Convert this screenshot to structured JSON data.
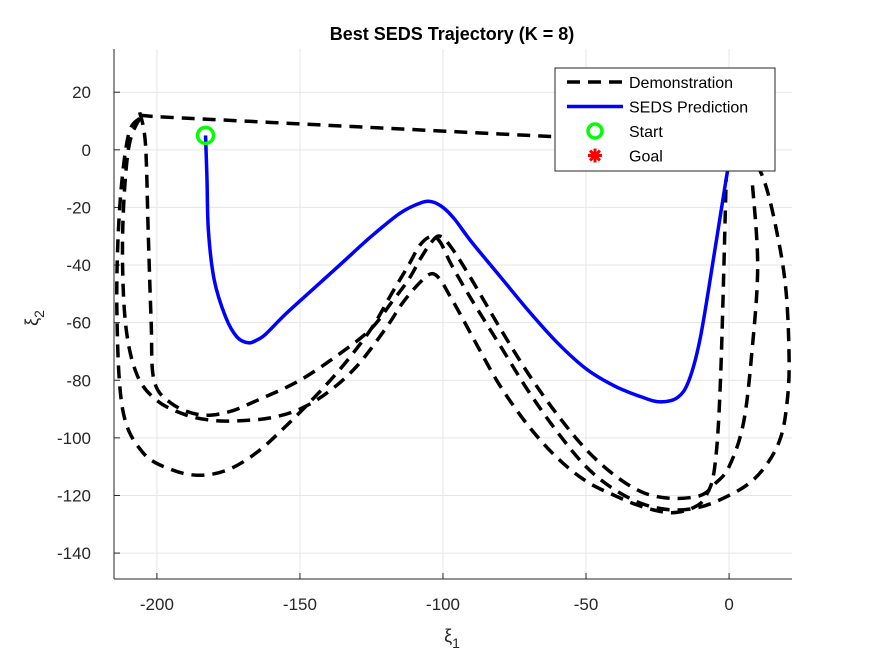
{
  "chart_data": {
    "type": "line",
    "title": "Best SEDS Trajectory (K = 8)",
    "xlabel": "ξ",
    "xlabel_sub": "1",
    "ylabel": "ξ",
    "ylabel_sub": "2",
    "xlim": [
      -215,
      22
    ],
    "ylim": [
      -149,
      35
    ],
    "xticks": [
      -200,
      -150,
      -100,
      -50,
      0
    ],
    "yticks": [
      -140,
      -120,
      -100,
      -80,
      -60,
      -40,
      -20,
      0,
      20
    ],
    "grid": true,
    "legend_position": "top-right",
    "legend": [
      {
        "label": "Demonstration",
        "style": "dashed",
        "color": "#000000"
      },
      {
        "label": "SEDS Prediction",
        "style": "solid",
        "color": "#0000ff"
      },
      {
        "label": "Start",
        "style": "circle",
        "color": "#00ff00"
      },
      {
        "label": "Goal",
        "style": "asterisk",
        "color": "#ff0000"
      }
    ],
    "series": [
      {
        "name": "Demonstration",
        "color": "#000000",
        "x": [
          -206,
          -210,
          -213,
          -214,
          -212,
          -205,
          -195,
          -185,
          -175,
          -165,
          -155,
          -145,
          -135,
          -125,
          -118,
          -112,
          -108,
          -104,
          -101,
          -97,
          -90,
          -80,
          -70,
          -60,
          -50,
          -40,
          -30,
          -20,
          -10,
          0,
          8,
          14,
          18,
          20,
          21,
          20,
          17,
          12,
          5,
          0
        ],
        "y": [
          11,
          5,
          -20,
          -55,
          -90,
          -105,
          -111,
          -113,
          -111,
          -105,
          -96,
          -86,
          -75,
          -62,
          -50,
          -40,
          -33,
          -30,
          -32,
          -40,
          -52,
          -68,
          -84,
          -98,
          -110,
          -118,
          -123,
          -125,
          -124,
          -120,
          -115,
          -108,
          -100,
          -90,
          -75,
          -50,
          -30,
          -10,
          2,
          5
        ]
      },
      {
        "name": "Demonstration",
        "color": "#000000",
        "x": [
          -206,
          -204,
          -203,
          -202,
          -201,
          -195,
          -185,
          -175,
          -165,
          -150,
          -135,
          -125,
          -118,
          -112,
          -108,
          -104,
          -101,
          -97,
          -90,
          -80,
          -70,
          -60,
          -50,
          -40,
          -30,
          -20,
          -10,
          -5,
          0,
          5,
          8,
          10,
          8
        ],
        "y": [
          13,
          2,
          -30,
          -60,
          -80,
          -88,
          -92,
          -91,
          -87,
          -80,
          -70,
          -62,
          -53,
          -45,
          -38,
          -32,
          -30,
          -34,
          -45,
          -62,
          -78,
          -92,
          -104,
          -113,
          -119,
          -121,
          -120,
          -116,
          -110,
          -95,
          -70,
          -40,
          -10
        ]
      },
      {
        "name": "Demonstration",
        "color": "#000000",
        "x": [
          -206,
          -210,
          -212,
          -211,
          -207,
          -200,
          -190,
          -180,
          -170,
          -160,
          -150,
          -140,
          -130,
          -120,
          -114,
          -108,
          -104,
          -101,
          -98,
          -94,
          -88,
          -80,
          -70,
          -60,
          -50,
          -40,
          -30,
          -20,
          -12,
          -8,
          -5,
          -3,
          -1
        ],
        "y": [
          11,
          0,
          -30,
          -60,
          -78,
          -87,
          -92,
          -94,
          -94,
          -93,
          -90,
          -84,
          -75,
          -62,
          -53,
          -46,
          -43,
          -45,
          -50,
          -57,
          -68,
          -82,
          -96,
          -107,
          -115,
          -120,
          -124,
          -126,
          -124,
          -120,
          -110,
          -80,
          -10
        ]
      },
      {
        "name": "Demonstration",
        "color": "#000000",
        "x": [
          -206,
          -200,
          -190,
          -180,
          -170,
          -160,
          -150,
          -140,
          -130,
          -120,
          -110,
          -100,
          -90,
          -80,
          -70,
          -60,
          -50,
          -40,
          -30,
          -20,
          -10,
          0,
          5,
          8
        ],
        "y": [
          12,
          11.5,
          11,
          10.5,
          10,
          9.5,
          9,
          8.5,
          8,
          7.5,
          7,
          6.5,
          6,
          5.5,
          5,
          4.5,
          4,
          3.5,
          3,
          2.5,
          2,
          1.5,
          1,
          0
        ]
      },
      {
        "name": "SEDS Prediction",
        "color": "#0000ff",
        "x": [
          -183,
          -182.5,
          -182,
          -180,
          -176,
          -172,
          -168,
          -165,
          -162,
          -155,
          -145,
          -135,
          -125,
          -115,
          -108,
          -104,
          -100,
          -96,
          -90,
          -80,
          -70,
          -60,
          -50,
          -40,
          -30,
          -24,
          -18,
          -14,
          -10,
          -5,
          -1,
          0
        ],
        "y": [
          5,
          -10,
          -28,
          -45,
          -58,
          -65,
          -67,
          -66,
          -64,
          -57,
          -48,
          -39,
          -30,
          -22,
          -18.5,
          -18,
          -20,
          -24,
          -32,
          -44,
          -56,
          -67,
          -76,
          -82,
          -86,
          -87.5,
          -86,
          -80,
          -65,
          -35,
          -10,
          -5
        ]
      }
    ],
    "markers": {
      "start": {
        "x": -183,
        "y": 5
      },
      "goal": {
        "x": 0,
        "y": 0
      }
    }
  }
}
